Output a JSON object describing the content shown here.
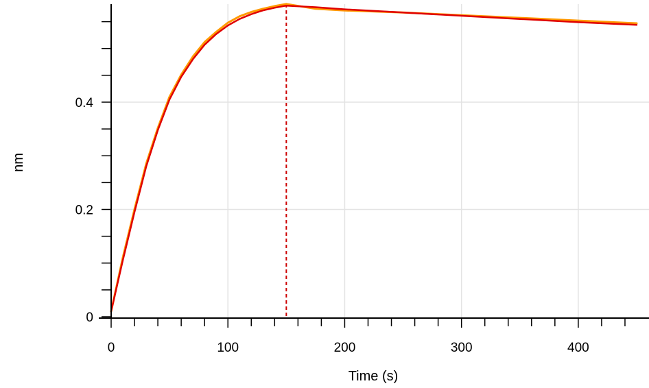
{
  "chart_data": {
    "type": "line",
    "xlabel": "Time (s)",
    "ylabel": "nm",
    "xlim": [
      0,
      450
    ],
    "ylim": [
      -0.01,
      0.585
    ],
    "x_ticks": [
      {
        "value": 0,
        "label": "0"
      },
      {
        "value": 100,
        "label": "100"
      },
      {
        "value": 200,
        "label": "200"
      },
      {
        "value": 300,
        "label": "300"
      },
      {
        "value": 400,
        "label": "400"
      }
    ],
    "y_ticks": [
      {
        "value": 0,
        "label": "0"
      },
      {
        "value": 0.2,
        "label": "0.2"
      },
      {
        "value": 0.4,
        "label": "0.4"
      }
    ],
    "x_minor_step": 20,
    "y_minor_step": 0.05,
    "grid": true,
    "vertical_markers": [
      {
        "x": 0,
        "style": "dashed",
        "color": "#cc0000"
      },
      {
        "x": 150,
        "style": "dashed",
        "color": "#cc0000"
      }
    ],
    "series": [
      {
        "style": "measured",
        "color": "#ff9900",
        "x": [
          0,
          10,
          20,
          30,
          40,
          50,
          60,
          70,
          80,
          90,
          100,
          110,
          120,
          130,
          140,
          150,
          175,
          200,
          250,
          300,
          350,
          400,
          450
        ],
        "y": [
          0.01,
          0.11,
          0.2,
          0.285,
          0.352,
          0.41,
          0.451,
          0.485,
          0.512,
          0.531,
          0.548,
          0.56,
          0.568,
          0.574,
          0.579,
          0.583,
          0.574,
          0.571,
          0.567,
          0.562,
          0.557,
          0.552,
          0.547
        ]
      },
      {
        "style": "fit",
        "color": "#e00000",
        "x": [
          0,
          10,
          20,
          30,
          40,
          50,
          60,
          70,
          80,
          90,
          100,
          110,
          120,
          130,
          140,
          150,
          175,
          200,
          250,
          300,
          350,
          400,
          450
        ],
        "y": [
          0.01,
          0.105,
          0.195,
          0.28,
          0.348,
          0.405,
          0.447,
          0.48,
          0.507,
          0.527,
          0.543,
          0.555,
          0.564,
          0.571,
          0.576,
          0.58,
          0.577,
          0.573,
          0.567,
          0.561,
          0.555,
          0.549,
          0.544
        ]
      }
    ]
  }
}
